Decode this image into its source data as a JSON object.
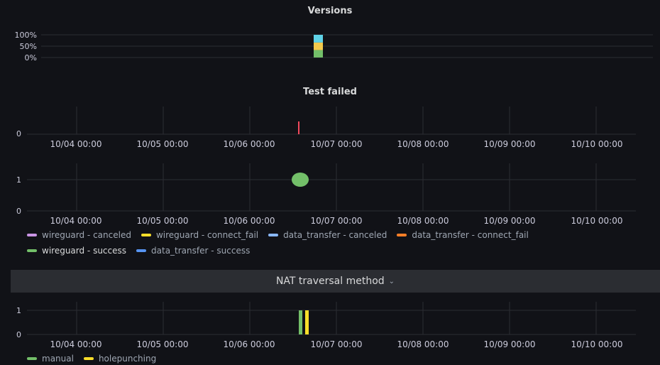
{
  "colors": {
    "green": "#73bf69",
    "yellow": "#fade2a",
    "orange": "#ff9830",
    "cyan": "#5fd2e6",
    "purple": "#ca95e5",
    "lightblue": "#8ab8ff",
    "red": "#f2495c",
    "blue": "#5794f2",
    "grid": "#2c2d33"
  },
  "x_ticks": [
    "10/04 00:00",
    "10/05 00:00",
    "10/06 00:00",
    "10/07 00:00",
    "10/08 00:00",
    "10/09 00:00",
    "10/10 00:00"
  ],
  "versions": {
    "title": "Versions",
    "y_ticks": [
      "100%",
      "50%",
      "0%"
    ]
  },
  "test_failed": {
    "title": "Test failed",
    "y_ticks": [
      "0"
    ]
  },
  "results": {
    "y_ticks": [
      "1",
      "0"
    ],
    "legend": [
      {
        "label": "wireguard - canceled",
        "color": "#ca95e5",
        "active": false
      },
      {
        "label": "wireguard - connect_fail",
        "color": "#fade2a",
        "active": false
      },
      {
        "label": "data_transfer - canceled",
        "color": "#8ab8ff",
        "active": false
      },
      {
        "label": "data_transfer - connect_fail",
        "color": "#ff7f27",
        "active": false
      },
      {
        "label": "wireguard - success",
        "color": "#73bf69",
        "active": true
      },
      {
        "label": "data_transfer - success",
        "color": "#5794f2",
        "active": false
      }
    ]
  },
  "nat_row": {
    "title": "NAT traversal method",
    "chevron": "⌄"
  },
  "nat": {
    "y_ticks": [
      "1",
      "0"
    ],
    "legend": [
      {
        "label": "manual",
        "color": "#73bf69",
        "active": false
      },
      {
        "label": "holepunching",
        "color": "#fade2a",
        "active": false
      }
    ]
  },
  "chart_data": [
    {
      "type": "bar",
      "title": "Versions",
      "x": [
        "10/06 ~19:00"
      ],
      "series": [
        {
          "values": [
            33
          ],
          "color": "#73bf69"
        },
        {
          "values": [
            33
          ],
          "color": "#f2c94c"
        },
        {
          "values": [
            34
          ],
          "color": "#5fd2e6"
        }
      ],
      "ylim": [
        0,
        100
      ],
      "stacked": true
    },
    {
      "type": "bar",
      "title": "Test failed",
      "x": [
        "10/06 ~13:00"
      ],
      "values": [
        0
      ],
      "ylim": [
        0,
        1
      ]
    },
    {
      "type": "scatter",
      "x": [
        "10/06 ~14:00"
      ],
      "series": [
        {
          "name": "wireguard - success",
          "values": [
            1
          ]
        }
      ],
      "ylim": [
        0,
        1
      ]
    },
    {
      "type": "bar",
      "x": [
        "10/06 ~14:00",
        "10/06 ~16:00"
      ],
      "series": [
        {
          "name": "manual",
          "values": [
            1,
            0
          ]
        },
        {
          "name": "holepunching",
          "values": [
            0,
            1
          ]
        }
      ],
      "ylim": [
        0,
        1
      ]
    }
  ]
}
